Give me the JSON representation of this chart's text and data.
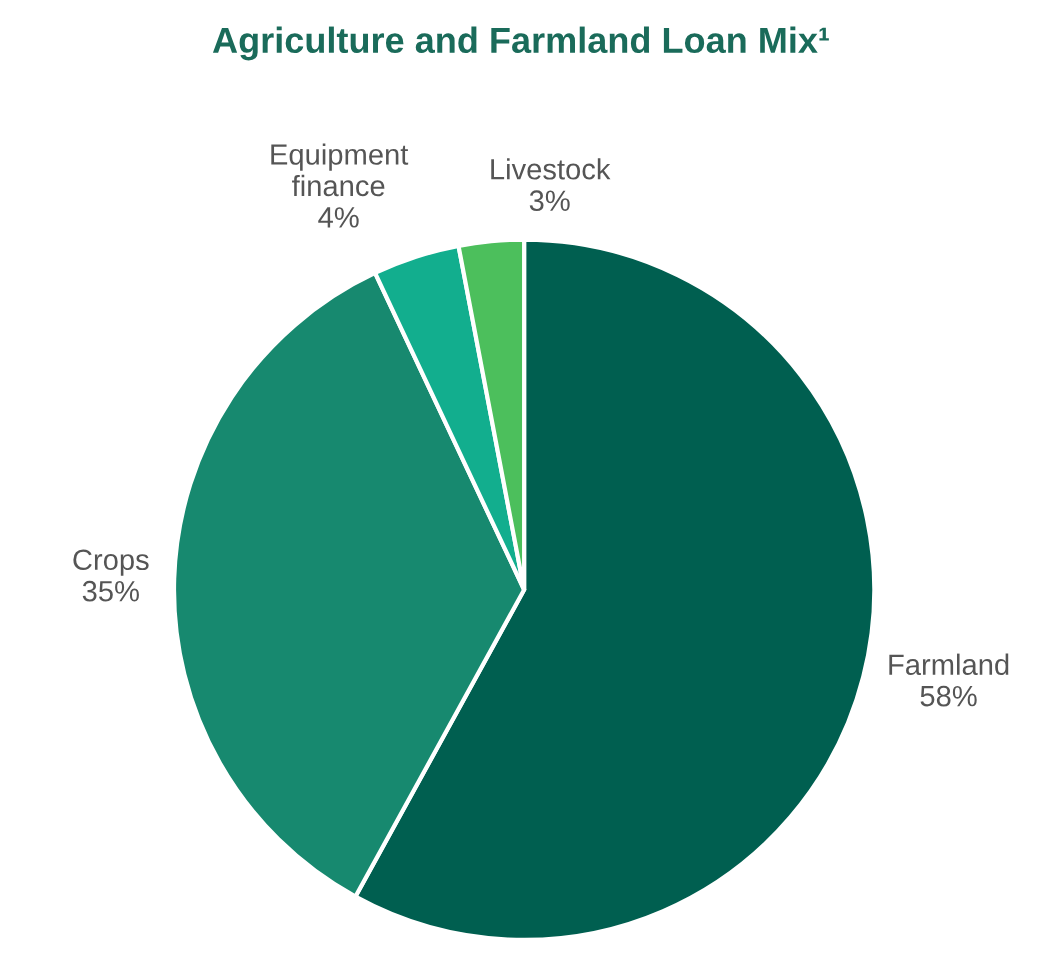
{
  "chart_data": {
    "type": "pie",
    "title": "Agriculture and Farmland Loan Mix¹",
    "categories": [
      "Farmland",
      "Crops",
      "Equipment\nfinance",
      "Livestock"
    ],
    "values": [
      58,
      35,
      4,
      3
    ],
    "value_labels": [
      "58%",
      "35%",
      "4%",
      "3%"
    ],
    "colors": [
      "#005f50",
      "#17896f",
      "#12ae8e",
      "#4cbf5c"
    ]
  }
}
